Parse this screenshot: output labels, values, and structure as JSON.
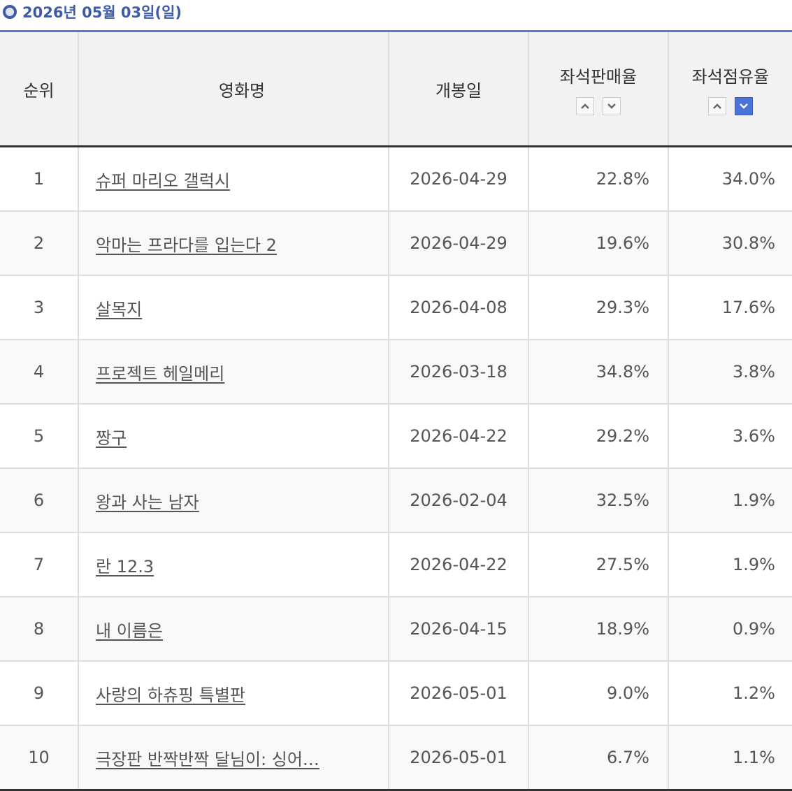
{
  "header": {
    "title": "2026년 05월 03일(일)"
  },
  "table": {
    "columns": [
      "순위",
      "영화명",
      "개봉일",
      "좌석판매율",
      "좌석점유율"
    ],
    "rows": [
      [
        1,
        "슈퍼 마리오 갤럭시",
        "2026-04-29",
        "22.8%",
        "34.0%"
      ],
      [
        2,
        "악마는 프라다를 입는다 2",
        "2026-04-29",
        "19.6%",
        "30.8%"
      ],
      [
        3,
        "살목지",
        "2026-04-08",
        "29.3%",
        "17.6%"
      ],
      [
        4,
        "프로젝트 헤일메리",
        "2026-03-18",
        "34.8%",
        "3.8%"
      ],
      [
        5,
        "짱구",
        "2026-04-22",
        "29.2%",
        "3.6%"
      ],
      [
        6,
        "왕과 사는 남자",
        "2026-02-04",
        "32.5%",
        "1.9%"
      ],
      [
        7,
        "란 12.3",
        "2026-04-22",
        "27.5%",
        "1.9%"
      ],
      [
        8,
        "내 이름은",
        "2026-04-15",
        "18.9%",
        "0.9%"
      ],
      [
        9,
        "사랑의 하츄핑 특별판",
        "2026-05-01",
        "9.0%",
        "1.2%"
      ],
      [
        10,
        "극장판 반짝반짝 달님이: 싱어…",
        "2026-05-01",
        "6.7%",
        "1.1%"
      ]
    ]
  }
}
